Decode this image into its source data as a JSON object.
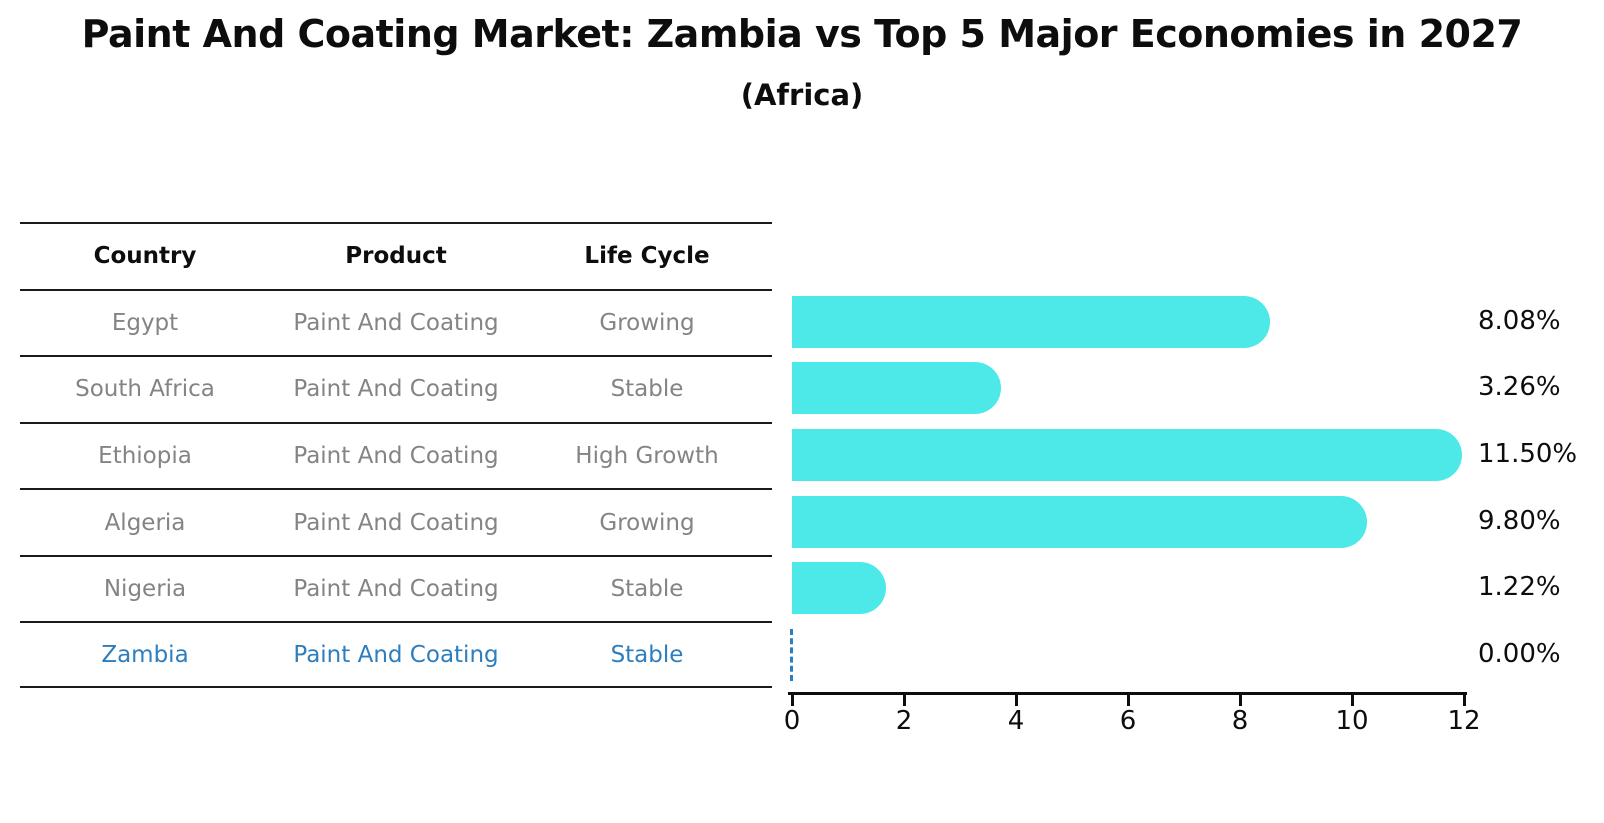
{
  "title": "Paint And Coating Market: Zambia vs Top 5 Major Economies in 2027",
  "subtitle": "(Africa)",
  "table": {
    "headers": [
      "Country",
      "Product",
      "Life Cycle"
    ],
    "rows": [
      {
        "country": "Egypt",
        "product": "Paint And Coating",
        "life_cycle": "Growing",
        "highlighted": false
      },
      {
        "country": "South Africa",
        "product": "Paint And Coating",
        "life_cycle": "Stable",
        "highlighted": false
      },
      {
        "country": "Ethiopia",
        "product": "Paint And Coating",
        "life_cycle": "High Growth",
        "highlighted": false
      },
      {
        "country": "Algeria",
        "product": "Paint And Coating",
        "life_cycle": "Growing",
        "highlighted": false
      },
      {
        "country": "Nigeria",
        "product": "Paint And Coating",
        "life_cycle": "Stable",
        "highlighted": false
      },
      {
        "country": "Zambia",
        "product": "Paint And Coating",
        "life_cycle": "Stable",
        "highlighted": true
      }
    ]
  },
  "chart_data": {
    "type": "bar",
    "orientation": "horizontal",
    "title": "Paint And Coating Market: Zambia vs Top 5 Major Economies in 2027",
    "subtitle": "(Africa)",
    "categories": [
      "Egypt",
      "South Africa",
      "Ethiopia",
      "Algeria",
      "Nigeria",
      "Zambia"
    ],
    "values": [
      8.08,
      3.26,
      11.5,
      9.8,
      1.22,
      0.0
    ],
    "value_labels": [
      "8.08%",
      "3.26%",
      "11.50%",
      "9.80%",
      "1.22%",
      "0.00%"
    ],
    "xlim": [
      0,
      12
    ],
    "x_ticks": [
      "0",
      "2",
      "4",
      "6",
      "8",
      "10",
      "12"
    ],
    "grid": false,
    "legend": "none",
    "bar_color": "#4DE8E8",
    "highlight_color": "#2E7EBD",
    "axis_color": "#0D0D0D"
  },
  "colors": {
    "background": "#FFFFFF",
    "title_text": "#0D0D0D",
    "table_text": "#848484",
    "table_line": "#1A1A1A",
    "bar": "#4DE8E8",
    "highlight": "#2E7EBD"
  }
}
